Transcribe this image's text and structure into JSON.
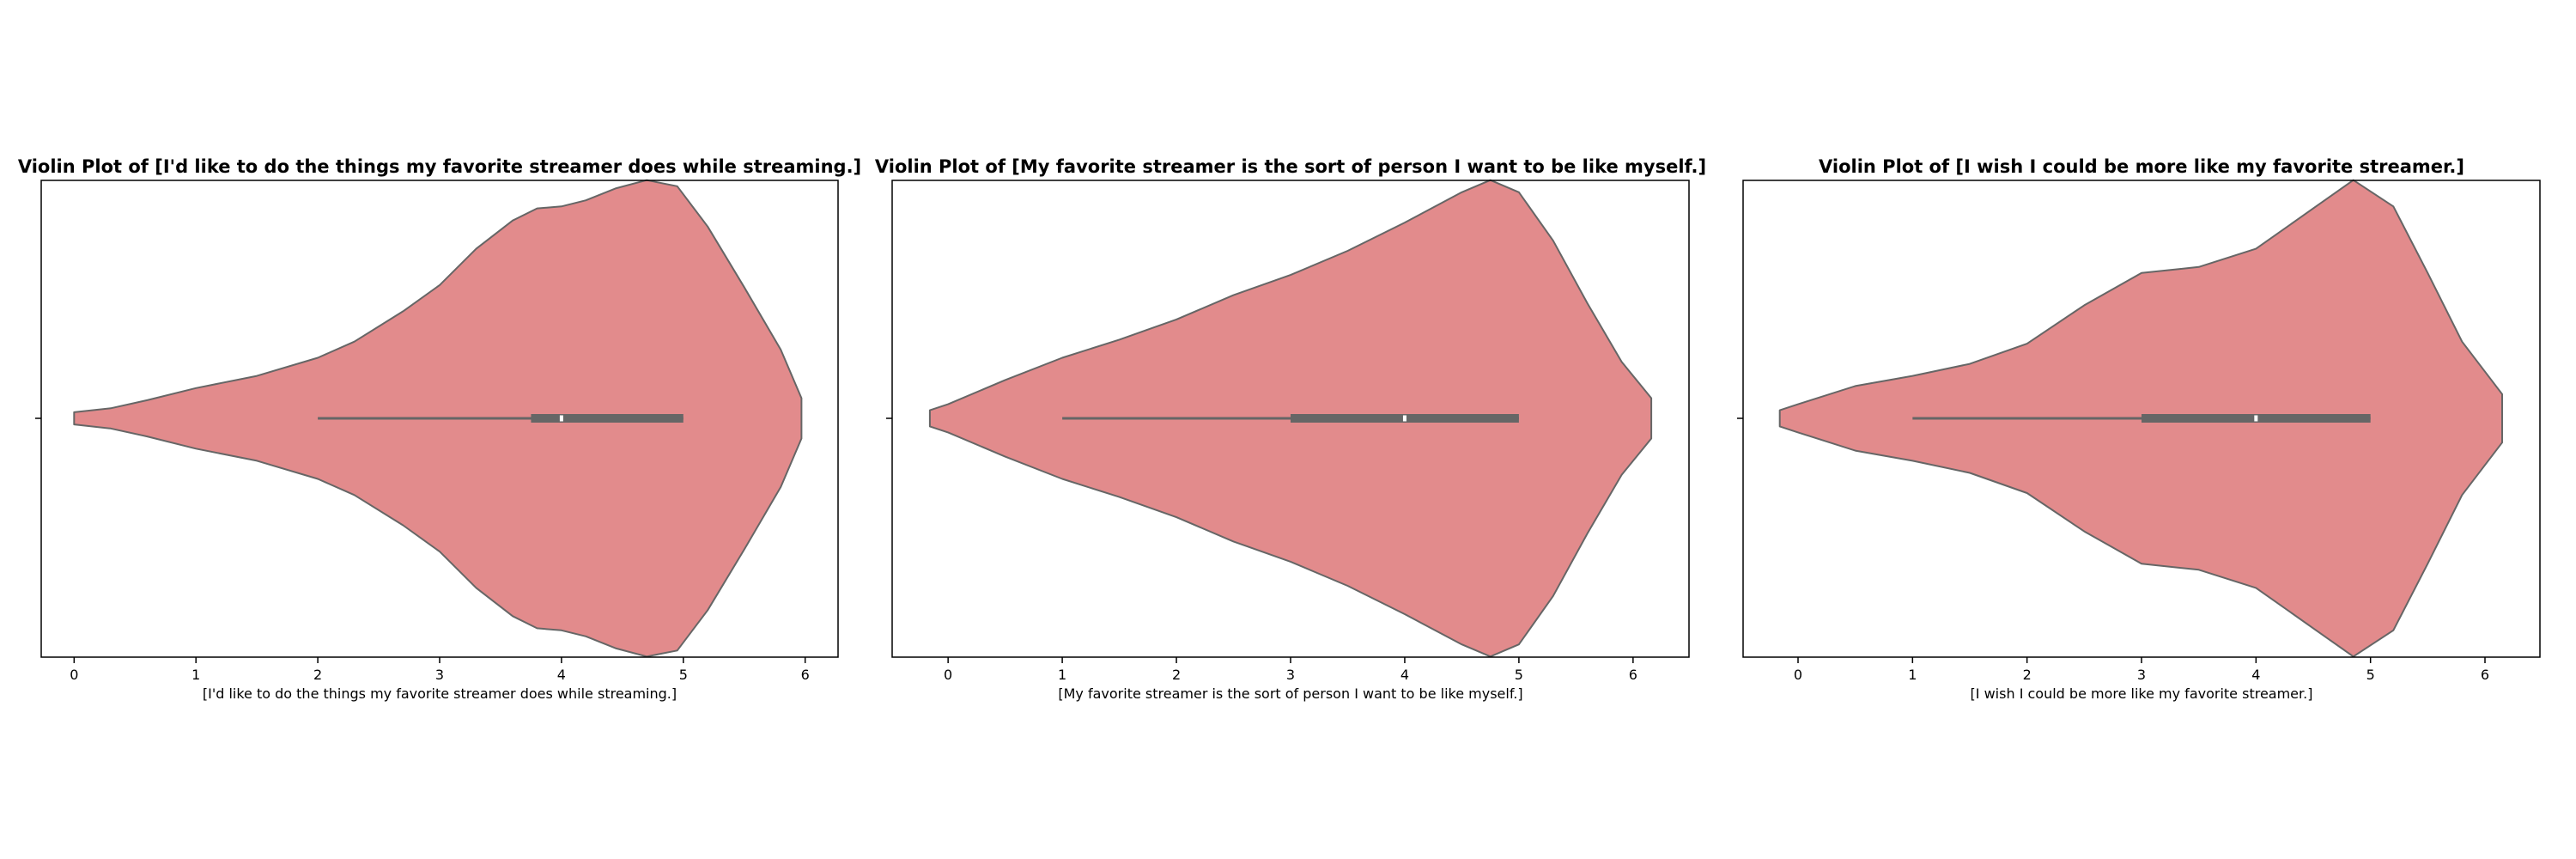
{
  "chart_data": [
    {
      "type": "violin",
      "title": "Violin Plot of [I'd like to do the things my favorite streamer does while streaming.]",
      "xlabel": "[I'd like to do the things my favorite streamer does while streaming.]",
      "ylabel": "",
      "xlim": [
        -0.27,
        6.27
      ],
      "xticks": [
        0,
        1,
        2,
        3,
        4,
        5,
        6
      ],
      "grid": false,
      "color": "#e28b8c",
      "outline_color": "#666666",
      "density": [
        [
          0.0,
          0.03
        ],
        [
          0.3,
          0.05
        ],
        [
          0.6,
          0.09
        ],
        [
          1.0,
          0.15
        ],
        [
          1.5,
          0.21
        ],
        [
          2.0,
          0.3
        ],
        [
          2.3,
          0.38
        ],
        [
          2.7,
          0.53
        ],
        [
          3.0,
          0.66
        ],
        [
          3.3,
          0.84
        ],
        [
          3.6,
          0.98
        ],
        [
          3.8,
          1.04
        ],
        [
          4.0,
          1.05
        ],
        [
          4.2,
          1.08
        ],
        [
          4.45,
          1.14
        ],
        [
          4.7,
          1.18
        ],
        [
          4.95,
          1.15
        ],
        [
          5.2,
          0.95
        ],
        [
          5.5,
          0.65
        ],
        [
          5.8,
          0.34
        ],
        [
          5.97,
          0.1
        ]
      ],
      "whisker": [
        2,
        5
      ],
      "quartiles": [
        3.75,
        5
      ],
      "median": 4
    },
    {
      "type": "violin",
      "title": "Violin Plot of [My favorite streamer is the sort of person I want to be like myself.]",
      "xlabel": "[My favorite streamer is the sort of person I want to be like myself.]",
      "ylabel": "",
      "xlim": [
        -0.49,
        6.49
      ],
      "xticks": [
        0,
        1,
        2,
        3,
        4,
        5,
        6
      ],
      "grid": false,
      "color": "#e28b8c",
      "outline_color": "#666666",
      "density": [
        [
          -0.16,
          0.04
        ],
        [
          0.0,
          0.07
        ],
        [
          0.5,
          0.19
        ],
        [
          1.0,
          0.3
        ],
        [
          1.5,
          0.39
        ],
        [
          2.0,
          0.49
        ],
        [
          2.5,
          0.61
        ],
        [
          3.0,
          0.71
        ],
        [
          3.5,
          0.83
        ],
        [
          4.0,
          0.97
        ],
        [
          4.5,
          1.12
        ],
        [
          4.75,
          1.18
        ],
        [
          5.0,
          1.12
        ],
        [
          5.3,
          0.88
        ],
        [
          5.6,
          0.57
        ],
        [
          5.9,
          0.28
        ],
        [
          6.16,
          0.1
        ]
      ],
      "whisker": [
        1,
        5
      ],
      "quartiles": [
        3,
        5
      ],
      "median": 4
    },
    {
      "type": "violin",
      "title": "Violin Plot of [I wish I could be more like my favorite streamer.]",
      "xlabel": "[I wish I could be more like my favorite streamer.]",
      "ylabel": "",
      "xlim": [
        -0.48,
        6.48
      ],
      "xticks": [
        0,
        1,
        2,
        3,
        4,
        5,
        6
      ],
      "grid": false,
      "color": "#e28b8c",
      "outline_color": "#666666",
      "density": [
        [
          -0.16,
          0.04
        ],
        [
          0.0,
          0.07
        ],
        [
          0.5,
          0.16
        ],
        [
          1.0,
          0.21
        ],
        [
          1.5,
          0.27
        ],
        [
          2.0,
          0.37
        ],
        [
          2.5,
          0.56
        ],
        [
          3.0,
          0.72
        ],
        [
          3.5,
          0.75
        ],
        [
          4.0,
          0.84
        ],
        [
          4.5,
          1.04
        ],
        [
          4.85,
          1.18
        ],
        [
          5.2,
          1.05
        ],
        [
          5.5,
          0.72
        ],
        [
          5.8,
          0.38
        ],
        [
          6.15,
          0.12
        ]
      ],
      "whisker": [
        1,
        5
      ],
      "quartiles": [
        3,
        5
      ],
      "median": 4
    }
  ]
}
